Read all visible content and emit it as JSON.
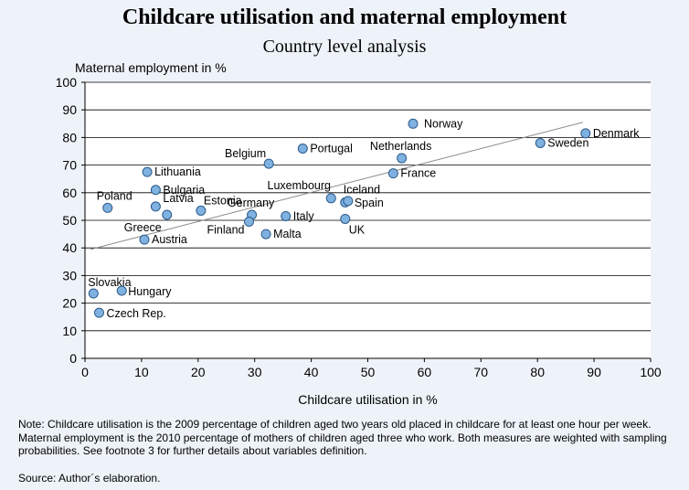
{
  "chart_data": {
    "type": "scatter",
    "title": "Childcare utilisation and maternal employment",
    "subtitle": "Country level analysis",
    "xlabel": "Childcare utilisation in %",
    "ylabel": "Maternal employment in %",
    "xlim": [
      0,
      100
    ],
    "ylim": [
      0,
      100
    ],
    "x_ticks": [
      0,
      10,
      20,
      30,
      40,
      50,
      60,
      70,
      80,
      90,
      100
    ],
    "y_ticks": [
      0,
      10,
      20,
      30,
      40,
      50,
      60,
      70,
      80,
      90,
      100
    ],
    "grid": "horizontal",
    "trendline": {
      "x": [
        1,
        88
      ],
      "y": [
        39.5,
        85.5
      ]
    },
    "points": [
      {
        "label": "Norway",
        "x": 58,
        "y": 85
      },
      {
        "label": "Denmark",
        "x": 88.5,
        "y": 81.5
      },
      {
        "label": "Sweden",
        "x": 80.5,
        "y": 78
      },
      {
        "label": "Belgium",
        "x": 32.5,
        "y": 70.5
      },
      {
        "label": "Portugal",
        "x": 38.5,
        "y": 76
      },
      {
        "label": "Netherlands",
        "x": 56,
        "y": 72.5
      },
      {
        "label": "France",
        "x": 54.5,
        "y": 67
      },
      {
        "label": "Lithuania",
        "x": 11,
        "y": 67.5
      },
      {
        "label": "Bulgaria",
        "x": 12.5,
        "y": 61
      },
      {
        "label": "Latvia",
        "x": 12.5,
        "y": 55
      },
      {
        "label": "Estonia",
        "x": 20.5,
        "y": 53.5
      },
      {
        "label": "Poland",
        "x": 4,
        "y": 54.5
      },
      {
        "label": "Greece",
        "x": 14.5,
        "y": 52
      },
      {
        "label": "Luxembourg",
        "x": 43.5,
        "y": 58
      },
      {
        "label": "Iceland",
        "x": 46,
        "y": 56.5
      },
      {
        "label": "Spain",
        "x": 46.5,
        "y": 57
      },
      {
        "label": "Germany",
        "x": 29.5,
        "y": 52
      },
      {
        "label": "Italy",
        "x": 35.5,
        "y": 51.5
      },
      {
        "label": "Finland",
        "x": 29,
        "y": 49.5
      },
      {
        "label": "UK",
        "x": 46,
        "y": 50.5
      },
      {
        "label": "Malta",
        "x": 32,
        "y": 45
      },
      {
        "label": "Austria",
        "x": 10.5,
        "y": 43
      },
      {
        "label": "Slovakia",
        "x": 1.5,
        "y": 23.5
      },
      {
        "label": "Hungary",
        "x": 6.5,
        "y": 24.5
      },
      {
        "label": "Czech Rep.",
        "x": 2.5,
        "y": 16.5
      }
    ]
  },
  "note": "Note: Childcare utilisation is the 2009 percentage of children aged two years old placed in childcare for at least one hour per week. Maternal employment is the 2010 percentage of mothers of children aged three who work. Both measures are weighted with sampling probabilities. See footnote 3 for further details about variables definition.",
  "source": "Source: Author´s elaboration.",
  "colors": {
    "marker_fill": "#7fb2e0",
    "marker_stroke": "#2c5a8a",
    "trendline": "#8a8a8a",
    "plot_bg": "#ffffff",
    "page_bg": "#eef3f9"
  }
}
